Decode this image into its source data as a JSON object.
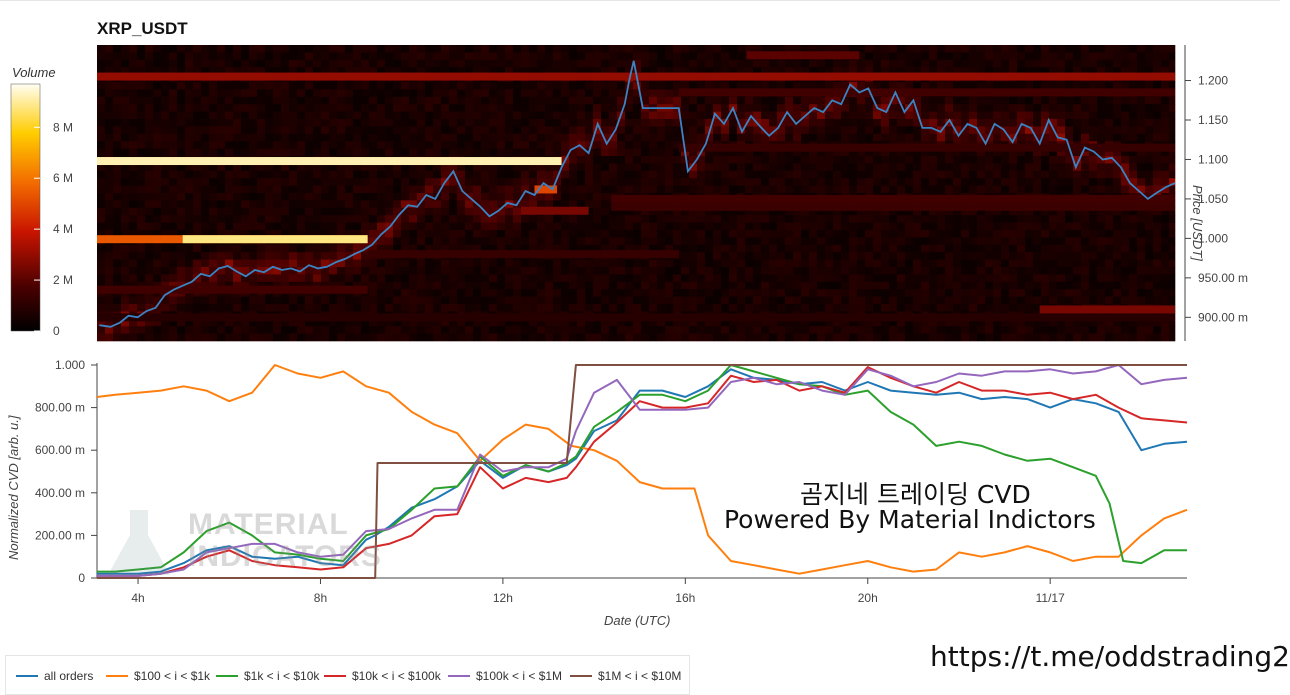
{
  "chart_data": [
    {
      "type": "heatmap",
      "title": "XRP_USDT",
      "colorbar_label": "Volume",
      "colorbar_ticks": [
        "0",
        "2 M",
        "4 M",
        "6 M",
        "8 M"
      ],
      "colorbar_tick_values": [
        0,
        2,
        4,
        6,
        8
      ],
      "colorbar_max": 9.7,
      "ylabel": "Price [USDT]",
      "yticks": [
        "900.00 m",
        "950.00 m",
        "1.000",
        "1.050",
        "1.100",
        "1.150",
        "1.200"
      ],
      "ytick_values": [
        0.9,
        0.95,
        1.0,
        1.05,
        1.1,
        1.15,
        1.2
      ],
      "ylim": [
        0.87,
        1.245
      ],
      "xlim": [
        3.1,
        27.0
      ],
      "price_series": {
        "name": "price",
        "color": "#3b84c4",
        "x": [
          3.15,
          3.4,
          3.6,
          3.8,
          4.0,
          4.2,
          4.4,
          4.6,
          4.8,
          5.0,
          5.2,
          5.4,
          5.6,
          5.8,
          6.0,
          6.2,
          6.4,
          6.6,
          6.8,
          7.0,
          7.2,
          7.4,
          7.6,
          7.8,
          8.0,
          8.2,
          8.4,
          8.6,
          8.8,
          9.0,
          9.2,
          9.4,
          9.6,
          9.8,
          10.0,
          10.2,
          10.4,
          10.6,
          10.8,
          11.0,
          11.2,
          11.4,
          11.6,
          11.8,
          12.0,
          12.2,
          12.4,
          12.6,
          12.8,
          13.0,
          13.2,
          13.4,
          13.6,
          13.8,
          14.0,
          14.2,
          14.4,
          14.6,
          14.8,
          14.9,
          15.0,
          15.2,
          15.4,
          15.6,
          15.8,
          16.0,
          16.2,
          16.4,
          16.6,
          16.8,
          17.0,
          17.2,
          17.4,
          17.6,
          17.8,
          18.0,
          18.2,
          18.4,
          18.6,
          18.8,
          19.0,
          19.2,
          19.4,
          19.6,
          19.8,
          20.0,
          20.2,
          20.4,
          20.6,
          20.8,
          21.0,
          21.2,
          21.4,
          21.6,
          21.8,
          22.0,
          22.2,
          22.4,
          22.6,
          22.8,
          23.0,
          23.2,
          23.4,
          23.6,
          23.8,
          24.0,
          24.2,
          24.4,
          24.6,
          24.8,
          25.0,
          25.2,
          25.4,
          25.6,
          25.8,
          26.0,
          26.2,
          26.4,
          26.6,
          26.8,
          27.0
        ],
        "y": [
          0.89,
          0.888,
          0.893,
          0.902,
          0.9,
          0.908,
          0.912,
          0.928,
          0.935,
          0.94,
          0.945,
          0.955,
          0.952,
          0.962,
          0.965,
          0.958,
          0.952,
          0.96,
          0.957,
          0.964,
          0.96,
          0.962,
          0.958,
          0.966,
          0.962,
          0.964,
          0.97,
          0.974,
          0.98,
          0.985,
          0.992,
          1.005,
          1.015,
          1.03,
          1.042,
          1.04,
          1.055,
          1.05,
          1.07,
          1.085,
          1.06,
          1.05,
          1.04,
          1.028,
          1.035,
          1.045,
          1.042,
          1.06,
          1.055,
          1.07,
          1.062,
          1.09,
          1.112,
          1.118,
          1.108,
          1.145,
          1.12,
          1.138,
          1.17,
          1.2,
          1.225,
          1.165,
          1.165,
          1.165,
          1.165,
          1.165,
          1.085,
          1.1,
          1.12,
          1.158,
          1.145,
          1.165,
          1.135,
          1.155,
          1.142,
          1.13,
          1.14,
          1.16,
          1.145,
          1.155,
          1.165,
          1.16,
          1.175,
          1.17,
          1.195,
          1.185,
          1.19,
          1.165,
          1.16,
          1.185,
          1.16,
          1.175,
          1.14,
          1.14,
          1.135,
          1.15,
          1.13,
          1.145,
          1.14,
          1.12,
          1.145,
          1.138,
          1.122,
          1.145,
          1.14,
          1.12,
          1.15,
          1.128,
          1.125,
          1.09,
          1.115,
          1.11,
          1.1,
          1.102,
          1.09,
          1.07,
          1.06,
          1.05,
          1.058,
          1.065,
          1.07
        ]
      },
      "heat_bands": [
        {
          "price": 1.205,
          "x0": 3.1,
          "x1": 27.0,
          "volume": 3.0
        },
        {
          "price": 1.098,
          "x0": 3.1,
          "x1": 13.4,
          "volume": 9.2
        },
        {
          "price": 0.999,
          "x0": 3.1,
          "x1": 9.1,
          "volume": 5.4
        },
        {
          "price": 0.999,
          "x0": 5.0,
          "x1": 9.1,
          "volume": 8.8
        },
        {
          "price": 1.062,
          "x0": 12.8,
          "x1": 13.3,
          "volume": 5.0
        },
        {
          "price": 1.05,
          "x0": 14.5,
          "x1": 27.0,
          "volume": 1.5
        },
        {
          "price": 1.185,
          "x0": 16.0,
          "x1": 27.0,
          "volume": 1.5
        },
        {
          "price": 1.115,
          "x0": 16.0,
          "x1": 27.0,
          "volume": 1.3
        },
        {
          "price": 0.98,
          "x0": 9.1,
          "x1": 16.0,
          "volume": 1.3
        },
        {
          "price": 0.935,
          "x0": 3.1,
          "x1": 9.1,
          "volume": 1.5
        },
        {
          "price": 0.9,
          "x0": 3.1,
          "x1": 27.0,
          "volume": 0.9
        },
        {
          "price": 0.91,
          "x0": 24.0,
          "x1": 27.0,
          "volume": 2.5
        },
        {
          "price": 1.04,
          "x0": 14.5,
          "x1": 27.0,
          "volume": 1.4
        },
        {
          "price": 1.035,
          "x0": 12.5,
          "x1": 14.0,
          "volume": 2.5
        },
        {
          "price": 1.232,
          "x0": 17.5,
          "x1": 20.0,
          "volume": 2.0
        }
      ]
    },
    {
      "type": "line",
      "xlabel": "Date (UTC)",
      "ylabel": "Normalized CVD [arb. u.]",
      "xticks": [
        "4h",
        "8h",
        "12h",
        "16h",
        "20h",
        "11/17"
      ],
      "xtick_values": [
        4,
        8,
        12,
        16,
        20,
        24
      ],
      "yticks": [
        "0",
        "200.00 m",
        "400.00 m",
        "600.00 m",
        "800.00 m",
        "1.000"
      ],
      "ytick_values": [
        0,
        0.2,
        0.4,
        0.6,
        0.8,
        1.0
      ],
      "xlim": [
        3.1,
        27.0
      ],
      "ylim": [
        0,
        1.0
      ],
      "legend_position": "bottom",
      "series": [
        {
          "name": "all orders",
          "color": "#1f77b4",
          "x": [
            3.1,
            3.5,
            4.0,
            4.5,
            5.0,
            5.5,
            6.0,
            6.5,
            7.0,
            7.5,
            8.0,
            8.5,
            9.0,
            9.2,
            9.5,
            10.0,
            10.5,
            11.0,
            11.5,
            12.0,
            12.5,
            13.0,
            13.4,
            13.6,
            14.0,
            14.5,
            15.0,
            15.5,
            16.0,
            16.5,
            17.0,
            17.5,
            18.0,
            18.5,
            19.0,
            19.5,
            20.0,
            20.5,
            21.0,
            21.5,
            22.0,
            22.5,
            23.0,
            23.5,
            24.0,
            24.5,
            25.0,
            25.5,
            26.0,
            26.5,
            27.0
          ],
          "y": [
            0.02,
            0.02,
            0.02,
            0.03,
            0.07,
            0.13,
            0.15,
            0.1,
            0.09,
            0.1,
            0.07,
            0.06,
            0.18,
            0.2,
            0.24,
            0.33,
            0.37,
            0.43,
            0.55,
            0.47,
            0.53,
            0.5,
            0.53,
            0.56,
            0.69,
            0.74,
            0.88,
            0.88,
            0.85,
            0.9,
            0.98,
            0.94,
            0.93,
            0.91,
            0.92,
            0.88,
            0.92,
            0.88,
            0.87,
            0.86,
            0.87,
            0.84,
            0.85,
            0.84,
            0.8,
            0.84,
            0.82,
            0.78,
            0.6,
            0.63,
            0.64
          ]
        },
        {
          "name": "$100 < i < $1k",
          "color": "#ff7f0e",
          "x": [
            3.1,
            3.5,
            4.0,
            4.5,
            5.0,
            5.5,
            6.0,
            6.5,
            7.0,
            7.5,
            8.0,
            8.5,
            9.0,
            9.5,
            10.0,
            10.5,
            11.0,
            11.5,
            12.0,
            12.5,
            13.0,
            13.5,
            14.0,
            14.5,
            15.0,
            15.5,
            16.0,
            16.2,
            16.5,
            17.0,
            17.5,
            18.0,
            18.5,
            19.0,
            19.5,
            20.0,
            20.5,
            21.0,
            21.5,
            22.0,
            22.5,
            23.0,
            23.5,
            24.0,
            24.5,
            25.0,
            25.5,
            26.0,
            26.5,
            27.0
          ],
          "y": [
            0.85,
            0.86,
            0.87,
            0.88,
            0.9,
            0.88,
            0.83,
            0.87,
            1.0,
            0.96,
            0.94,
            0.97,
            0.9,
            0.87,
            0.78,
            0.72,
            0.68,
            0.55,
            0.65,
            0.72,
            0.7,
            0.62,
            0.6,
            0.55,
            0.45,
            0.42,
            0.42,
            0.42,
            0.2,
            0.08,
            0.06,
            0.04,
            0.02,
            0.04,
            0.06,
            0.08,
            0.05,
            0.03,
            0.04,
            0.12,
            0.1,
            0.12,
            0.15,
            0.12,
            0.08,
            0.1,
            0.1,
            0.2,
            0.28,
            0.32
          ]
        },
        {
          "name": "$1k < i < $10k",
          "color": "#2ca02c",
          "x": [
            3.1,
            3.5,
            4.0,
            4.5,
            5.0,
            5.5,
            6.0,
            6.5,
            7.0,
            7.5,
            8.0,
            8.5,
            9.0,
            9.5,
            10.0,
            10.5,
            11.0,
            11.5,
            12.0,
            12.5,
            13.0,
            13.4,
            13.6,
            14.0,
            14.5,
            15.0,
            15.5,
            16.0,
            16.5,
            17.0,
            17.5,
            18.0,
            18.5,
            19.0,
            19.5,
            20.0,
            20.5,
            21.0,
            21.5,
            22.0,
            22.5,
            23.0,
            23.5,
            24.0,
            24.5,
            25.0,
            25.3,
            25.6,
            26.0,
            26.5,
            27.0
          ],
          "y": [
            0.03,
            0.03,
            0.04,
            0.05,
            0.12,
            0.22,
            0.26,
            0.2,
            0.12,
            0.11,
            0.09,
            0.08,
            0.2,
            0.23,
            0.32,
            0.42,
            0.43,
            0.57,
            0.48,
            0.53,
            0.5,
            0.54,
            0.57,
            0.71,
            0.78,
            0.86,
            0.86,
            0.83,
            0.88,
            1.0,
            0.97,
            0.94,
            0.91,
            0.9,
            0.86,
            0.88,
            0.78,
            0.72,
            0.62,
            0.64,
            0.62,
            0.58,
            0.55,
            0.56,
            0.52,
            0.48,
            0.35,
            0.08,
            0.07,
            0.13,
            0.13
          ]
        },
        {
          "name": "$10k < i < $100k",
          "color": "#d62728",
          "x": [
            3.1,
            3.5,
            4.0,
            4.5,
            5.0,
            5.5,
            6.0,
            6.5,
            7.0,
            7.5,
            8.0,
            8.5,
            9.0,
            9.5,
            10.0,
            10.5,
            11.0,
            11.5,
            12.0,
            12.5,
            13.0,
            13.4,
            13.6,
            14.0,
            14.5,
            15.0,
            15.5,
            16.0,
            16.5,
            17.0,
            17.5,
            18.0,
            18.5,
            19.0,
            19.5,
            20.0,
            20.5,
            21.0,
            21.5,
            22.0,
            22.5,
            23.0,
            23.5,
            24.0,
            24.5,
            25.0,
            25.5,
            26.0,
            26.5,
            27.0
          ],
          "y": [
            0.01,
            0.01,
            0.01,
            0.02,
            0.05,
            0.1,
            0.13,
            0.08,
            0.06,
            0.05,
            0.04,
            0.05,
            0.14,
            0.16,
            0.2,
            0.29,
            0.3,
            0.52,
            0.42,
            0.47,
            0.45,
            0.47,
            0.52,
            0.64,
            0.73,
            0.83,
            0.8,
            0.8,
            0.82,
            0.95,
            0.92,
            0.93,
            0.88,
            0.9,
            0.87,
            0.99,
            0.94,
            0.9,
            0.87,
            0.92,
            0.88,
            0.88,
            0.86,
            0.87,
            0.84,
            0.86,
            0.8,
            0.75,
            0.74,
            0.73
          ]
        },
        {
          "name": "$100k < i < $1M",
          "color": "#9467bd",
          "x": [
            3.1,
            3.5,
            4.0,
            4.5,
            5.0,
            5.5,
            6.0,
            6.5,
            7.0,
            7.5,
            8.0,
            8.5,
            9.0,
            9.5,
            10.0,
            10.5,
            11.0,
            11.5,
            12.0,
            12.5,
            13.0,
            13.4,
            13.6,
            14.0,
            14.5,
            15.0,
            15.5,
            16.0,
            16.5,
            17.0,
            17.5,
            18.0,
            18.5,
            19.0,
            19.5,
            20.0,
            20.5,
            21.0,
            21.5,
            22.0,
            22.5,
            23.0,
            23.5,
            24.0,
            24.5,
            25.0,
            25.5,
            26.0,
            26.5,
            27.0
          ],
          "y": [
            0.01,
            0.01,
            0.01,
            0.02,
            0.04,
            0.12,
            0.14,
            0.16,
            0.16,
            0.12,
            0.1,
            0.11,
            0.22,
            0.23,
            0.28,
            0.32,
            0.32,
            0.58,
            0.5,
            0.52,
            0.52,
            0.56,
            0.69,
            0.87,
            0.93,
            0.79,
            0.79,
            0.79,
            0.8,
            0.92,
            0.94,
            0.91,
            0.92,
            0.88,
            0.86,
            0.98,
            0.95,
            0.9,
            0.92,
            0.96,
            0.95,
            0.97,
            0.97,
            0.98,
            0.96,
            0.97,
            1.0,
            0.91,
            0.93,
            0.94
          ]
        },
        {
          "name": "$1M < i < $10M",
          "color": "#7f4f3f",
          "x": [
            3.1,
            9.2,
            9.25,
            13.4,
            13.6,
            27.0
          ],
          "y": [
            0.0,
            0.0,
            0.54,
            0.54,
            1.0,
            1.0
          ]
        }
      ]
    }
  ],
  "watermark": {
    "line1": "곰지네 트레이딩 CVD",
    "line2": "Powered By Material Indictors",
    "logo_line1": "MATERIAL",
    "logo_line2": "INDICATORS"
  },
  "url": "https://t.me/oddstrading2",
  "colors": {
    "heat_low": "#1a0000",
    "heat_mid": "#cc1a00",
    "heat_high": "#fffbd0"
  }
}
